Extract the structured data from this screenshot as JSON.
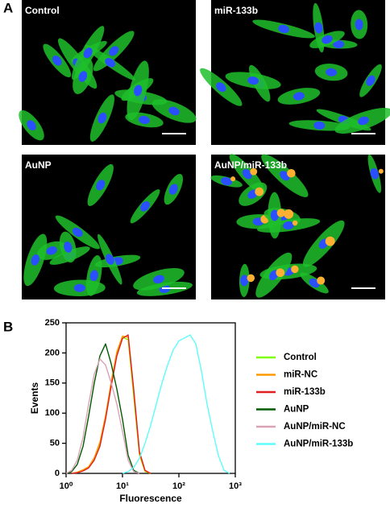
{
  "panel_letters": [
    "A",
    "B"
  ],
  "panels": [
    {
      "label": "Control"
    },
    {
      "label": "miR-133b"
    },
    {
      "label": "AuNP"
    },
    {
      "label": "AuNP/miR-133b"
    }
  ],
  "chart_data": {
    "type": "line",
    "x_label": "Fluorescence",
    "y_label": "Events",
    "log_x": true,
    "xlim": [
      1,
      1000
    ],
    "xticks": [
      {
        "value": 1,
        "label": "10⁰"
      },
      {
        "value": 10,
        "label": "10¹"
      },
      {
        "value": 100,
        "label": "10²"
      },
      {
        "value": 1000,
        "label": "10³"
      }
    ],
    "ylim": [
      0,
      250
    ],
    "yticks": [
      0,
      50,
      100,
      150,
      200,
      250
    ],
    "x": [
      1,
      1.26,
      1.58,
      2,
      2.51,
      3.16,
      3.98,
      5.01,
      6.31,
      7.94,
      10,
      12.6,
      15.8,
      20,
      25.1,
      31.6,
      39.8,
      50.1,
      63.1,
      79.4,
      100,
      126,
      158,
      200,
      251,
      316,
      398,
      501,
      631,
      794,
      1000
    ],
    "series": [
      {
        "name": "Control",
        "color": "#80ff00",
        "values": [
          null,
          0,
          2,
          5,
          10,
          24,
          48,
          92,
          148,
          198,
          226,
          222,
          128,
          30,
          3,
          0,
          null,
          null,
          null,
          null,
          null,
          null,
          null,
          null,
          null,
          null,
          null,
          null,
          null,
          null,
          null
        ]
      },
      {
        "name": "miR-NC",
        "color": "#ff9a00",
        "values": [
          null,
          0,
          2,
          6,
          11,
          26,
          52,
          96,
          152,
          202,
          228,
          226,
          135,
          32,
          4,
          0,
          null,
          null,
          null,
          null,
          null,
          null,
          null,
          null,
          null,
          null,
          null,
          null,
          null,
          null,
          null
        ]
      },
      {
        "name": "miR-133b",
        "color": "#e02020",
        "values": [
          null,
          0,
          1,
          4,
          9,
          22,
          45,
          90,
          145,
          195,
          224,
          230,
          140,
          36,
          5,
          0,
          null,
          null,
          null,
          null,
          null,
          null,
          null,
          null,
          null,
          null,
          null,
          null,
          null,
          null,
          null
        ]
      },
      {
        "name": "AuNP",
        "color": "#005a00",
        "values": [
          0,
          3,
          15,
          45,
          95,
          150,
          195,
          215,
          182,
          140,
          90,
          30,
          5,
          0,
          null,
          null,
          null,
          null,
          null,
          null,
          null,
          null,
          null,
          null,
          null,
          null,
          null,
          null,
          null,
          null,
          null
        ]
      },
      {
        "name": "AuNP/miR-NC",
        "color": "#d9a3b5",
        "values": [
          0,
          5,
          22,
          60,
          115,
          165,
          190,
          180,
          150,
          115,
          70,
          22,
          3,
          0,
          null,
          null,
          null,
          null,
          null,
          null,
          null,
          null,
          null,
          null,
          null,
          null,
          null,
          null,
          null,
          null,
          null
        ]
      },
      {
        "name": "AuNP/miR-133b",
        "color": "#5ffcfc",
        "values": [
          null,
          null,
          null,
          null,
          null,
          null,
          null,
          null,
          null,
          null,
          0,
          3,
          10,
          25,
          50,
          80,
          115,
          150,
          180,
          205,
          220,
          225,
          230,
          215,
          170,
          115,
          70,
          30,
          5,
          0,
          null
        ]
      }
    ]
  }
}
